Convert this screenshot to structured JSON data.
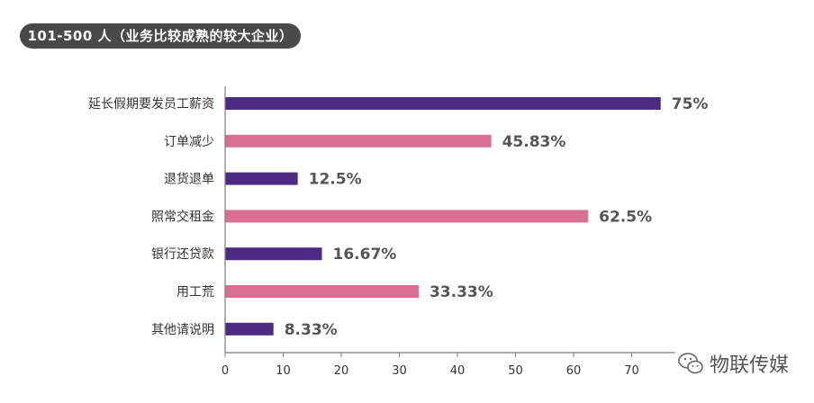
{
  "title": "101-500 人（业务比较成熟的较大企业）",
  "watermark_text": "物联传媒",
  "colors": {
    "purple": "#4b2c82",
    "pink": "#d97092",
    "axis": "#7a7a7a",
    "label": "#333333",
    "value_label": "#555555",
    "title_bg": "#4a4a4a"
  },
  "chart_data": {
    "type": "bar",
    "orientation": "horizontal",
    "title": "101-500 人（业务比较成熟的较大企业）",
    "categories": [
      "延长假期要发员工薪资",
      "订单减少",
      "退货退单",
      "照常交租金",
      "银行还贷款",
      "用工荒",
      "其他请说明"
    ],
    "values": [
      75,
      45.83,
      12.5,
      62.5,
      16.67,
      33.33,
      8.33
    ],
    "value_labels": [
      "75%",
      "45.83%",
      "12.5%",
      "62.5%",
      "16.67%",
      "33.33%",
      "8.33%"
    ],
    "bar_colors": [
      "purple",
      "pink",
      "purple",
      "pink",
      "purple",
      "pink",
      "purple"
    ],
    "xticks": [
      "0",
      "10",
      "20",
      "30",
      "40",
      "50",
      "60",
      "70"
    ],
    "xlim": [
      0,
      80
    ],
    "grid": false,
    "xlabel": "",
    "ylabel": ""
  }
}
